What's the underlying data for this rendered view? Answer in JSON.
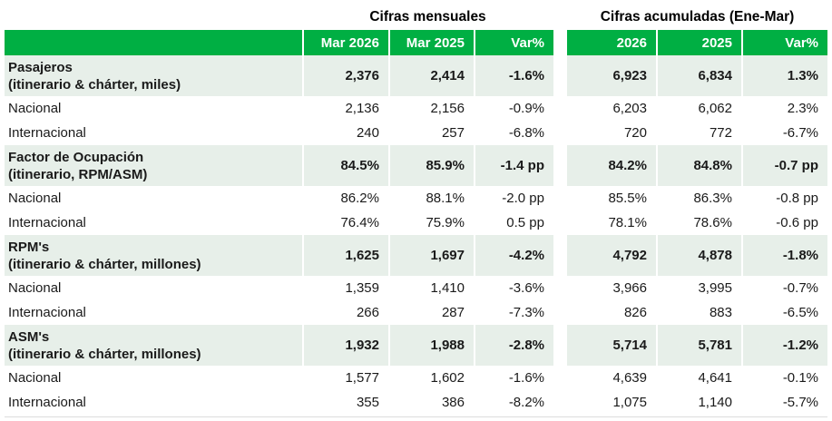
{
  "colors": {
    "header_green": "#00AF43",
    "band_light": "#E7EFE9",
    "text": "#1A1A1A",
    "header_text": "#FFFFFF"
  },
  "titles": {
    "monthly": "Cifras mensuales",
    "accumulated": "Cifras acumuladas (Ene-Mar)"
  },
  "columns": {
    "monthly": [
      "Mar 2026",
      "Mar 2025",
      "Var%"
    ],
    "accumulated": [
      "2026",
      "2025",
      "Var%"
    ]
  },
  "rows": [
    {
      "label": "Pasajeros",
      "sub": "(itinerario & chárter, miles)",
      "section": true,
      "monthly": [
        "2,376",
        "2,414",
        "-1.6%"
      ],
      "accumulated": [
        "6,923",
        "6,834",
        "1.3%"
      ]
    },
    {
      "label": "Nacional",
      "section": false,
      "monthly": [
        "2,136",
        "2,156",
        "-0.9%"
      ],
      "accumulated": [
        "6,203",
        "6,062",
        "2.3%"
      ]
    },
    {
      "label": "Internacional",
      "section": false,
      "monthly": [
        "240",
        "257",
        "-6.8%"
      ],
      "accumulated": [
        "720",
        "772",
        "-6.7%"
      ]
    },
    {
      "label": "Factor de Ocupación",
      "sub": "(itinerario, RPM/ASM)",
      "section": true,
      "monthly": [
        "84.5%",
        "85.9%",
        "-1.4 pp"
      ],
      "accumulated": [
        "84.2%",
        "84.8%",
        "-0.7 pp"
      ]
    },
    {
      "label": "Nacional",
      "section": false,
      "monthly": [
        "86.2%",
        "88.1%",
        "-2.0 pp"
      ],
      "accumulated": [
        "85.5%",
        "86.3%",
        "-0.8 pp"
      ]
    },
    {
      "label": "Internacional",
      "section": false,
      "monthly": [
        "76.4%",
        "75.9%",
        "0.5 pp"
      ],
      "accumulated": [
        "78.1%",
        "78.6%",
        "-0.6 pp"
      ]
    },
    {
      "label": "RPM's",
      "sub": "(itinerario & chárter, millones)",
      "section": true,
      "monthly": [
        "1,625",
        "1,697",
        "-4.2%"
      ],
      "accumulated": [
        "4,792",
        "4,878",
        "-1.8%"
      ]
    },
    {
      "label": "Nacional",
      "section": false,
      "monthly": [
        "1,359",
        "1,410",
        "-3.6%"
      ],
      "accumulated": [
        "3,966",
        "3,995",
        "-0.7%"
      ]
    },
    {
      "label": "Internacional",
      "section": false,
      "monthly": [
        "266",
        "287",
        "-7.3%"
      ],
      "accumulated": [
        "826",
        "883",
        "-6.5%"
      ]
    },
    {
      "label": "ASM's",
      "sub": "(itinerario & chárter, millones)",
      "section": true,
      "monthly": [
        "1,932",
        "1,988",
        "-2.8%"
      ],
      "accumulated": [
        "5,714",
        "5,781",
        "-1.2%"
      ]
    },
    {
      "label": "Nacional",
      "section": false,
      "monthly": [
        "1,577",
        "1,602",
        "-1.6%"
      ],
      "accumulated": [
        "4,639",
        "4,641",
        "-0.1%"
      ]
    },
    {
      "label": "Internacional",
      "section": false,
      "monthly": [
        "355",
        "386",
        "-8.2%"
      ],
      "accumulated": [
        "1,075",
        "1,140",
        "-5.7%"
      ]
    }
  ]
}
